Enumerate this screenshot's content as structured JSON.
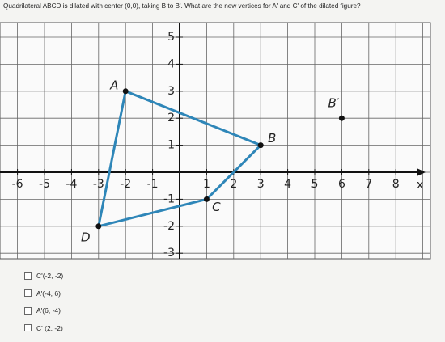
{
  "question": "Quadrilateral ABCD is dilated with center (0,0), taking B to B'. What are the new vertices for A' and C' of the dilated figure?",
  "graph": {
    "xticks": [
      -6,
      -5,
      -4,
      -3,
      -2,
      -1,
      1,
      2,
      3,
      4,
      5,
      6,
      7,
      8
    ],
    "yticks": [
      5,
      4,
      3,
      2,
      1,
      -1,
      -2,
      -3
    ],
    "x_label": "x",
    "points": [
      {
        "label": "A",
        "x": -2,
        "y": 3
      },
      {
        "label": "B",
        "x": 3,
        "y": 1
      },
      {
        "label": "C",
        "x": 1,
        "y": -1
      },
      {
        "label": "D",
        "x": -3,
        "y": -2
      },
      {
        "label": "B′",
        "x": 6,
        "y": 2
      }
    ]
  },
  "options": [
    "C'(-2, -2)",
    "A'(-4, 6)",
    "A'(6, -4)",
    "C' (2, -2)"
  ]
}
